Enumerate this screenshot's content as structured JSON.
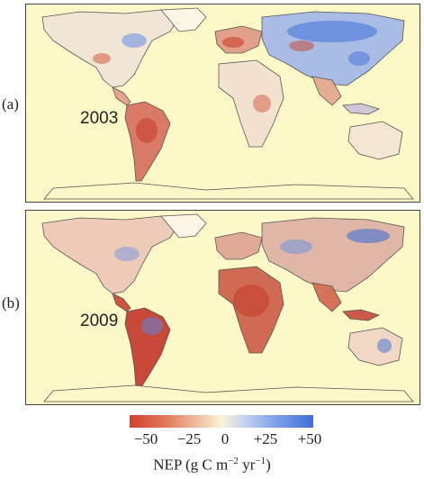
{
  "panels": [
    {
      "letter": "(a)",
      "year": "2003"
    },
    {
      "letter": "(b)",
      "year": "2009"
    }
  ],
  "colorbar": {
    "ticks": [
      "−50",
      "−25",
      "0",
      "+25",
      "+50"
    ],
    "label_prefix": "NEP (g C m",
    "label_exp1": "−2",
    "label_mid": " yr",
    "label_exp2": "−1",
    "label_suffix": ")",
    "colors": {
      "negative": "#d2402e",
      "zero": "#fbf4d6",
      "positive": "#3f6fd8"
    }
  },
  "colors": {
    "land_background": "#fdf8c8",
    "coastline": "#555555"
  }
}
